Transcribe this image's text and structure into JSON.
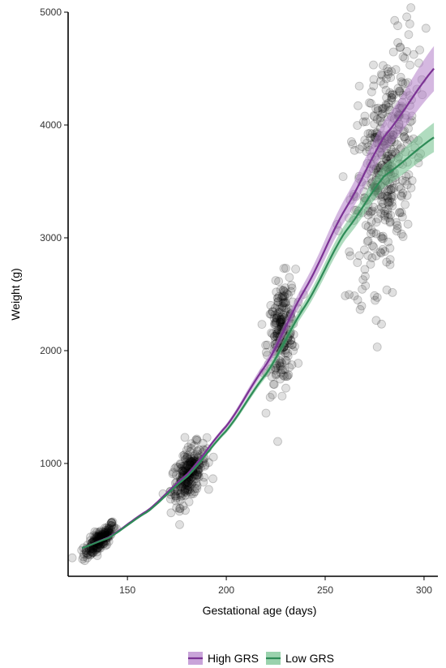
{
  "chart_data": {
    "type": "scatter",
    "xlabel": "Gestational age (days)",
    "ylabel": "Weight (g)",
    "xlim": [
      120,
      307
    ],
    "ylim": [
      0,
      5000
    ],
    "x_ticks": [
      150,
      200,
      250,
      300
    ],
    "y_ticks": [
      1000,
      2000,
      3000,
      4000,
      5000
    ],
    "grid": false,
    "legend_position": "bottom",
    "point_color": "#000000",
    "clusters": [
      {
        "x_center": 136,
        "x_spread": 4,
        "y_center": 320,
        "y_spread": 45,
        "count": 180
      },
      {
        "x_center": 181,
        "x_spread": 4.5,
        "y_center": 900,
        "y_spread": 110,
        "count": 230
      },
      {
        "x_center": 228,
        "x_spread": 3.5,
        "y_center": 2150,
        "y_spread": 230,
        "count": 220
      },
      {
        "x_center": 280,
        "x_spread": 8,
        "y_center": 3650,
        "y_spread": 480,
        "count": 420
      }
    ],
    "series": [
      {
        "name": "High GRS",
        "color": "#7b3294",
        "band_color": "#b27ec9",
        "x": [
          127,
          140,
          160,
          180,
          200,
          220,
          240,
          260,
          280,
          305
        ],
        "y": [
          250,
          340,
          580,
          900,
          1330,
          1870,
          2550,
          3250,
          3900,
          4500
        ],
        "lower": [
          245,
          335,
          572,
          890,
          1310,
          1830,
          2480,
          3150,
          3760,
          4300
        ],
        "upper": [
          255,
          345,
          588,
          910,
          1350,
          1910,
          2620,
          3350,
          4040,
          4700
        ]
      },
      {
        "name": "Low GRS",
        "color": "#2e8b57",
        "band_color": "#6fbf8a",
        "x": [
          127,
          140,
          160,
          180,
          200,
          220,
          240,
          260,
          280,
          305
        ],
        "y": [
          250,
          335,
          570,
          880,
          1290,
          1790,
          2400,
          3050,
          3550,
          3890
        ],
        "lower": [
          245,
          330,
          562,
          870,
          1270,
          1760,
          2350,
          2980,
          3450,
          3760
        ],
        "upper": [
          255,
          340,
          578,
          890,
          1310,
          1820,
          2450,
          3120,
          3650,
          4020
        ]
      }
    ]
  }
}
